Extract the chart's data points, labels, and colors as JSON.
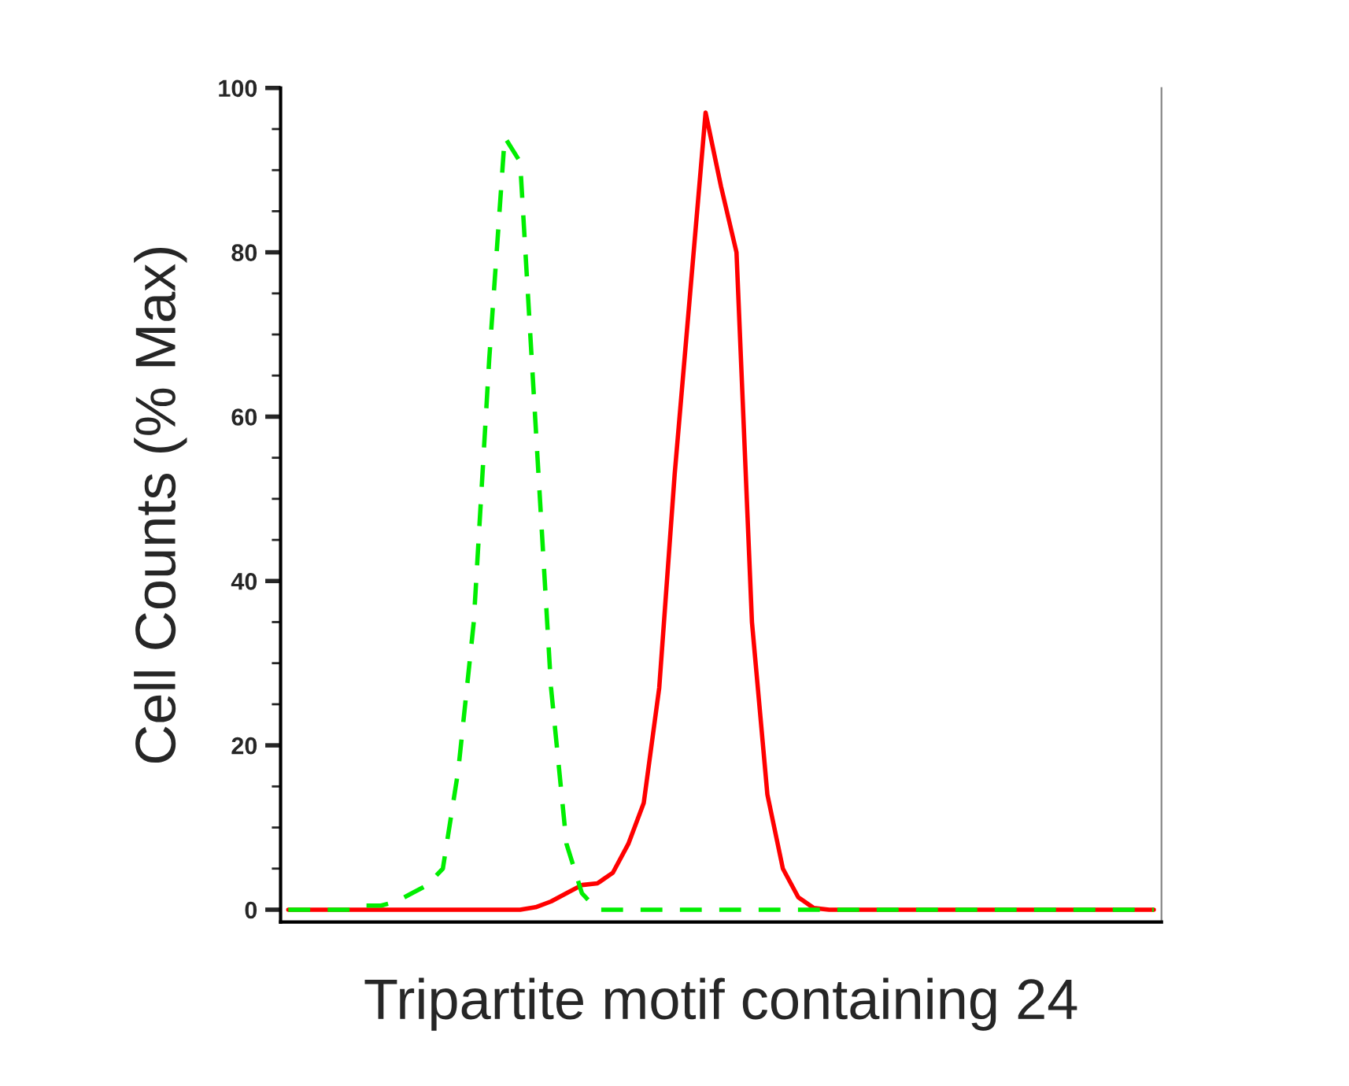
{
  "chart_data": {
    "type": "line",
    "xlabel": "Tripartite motif containing 24",
    "ylabel": "Cell Counts (% Max)",
    "categories": [
      null,
      null,
      null,
      null,
      null,
      null,
      null,
      null,
      null,
      null,
      null,
      null,
      null,
      null,
      null,
      null,
      null,
      null,
      null,
      null,
      null,
      null,
      null,
      null,
      null,
      null,
      null,
      null,
      null,
      null,
      null,
      null,
      null,
      null,
      null,
      null,
      null,
      null,
      null,
      null,
      null,
      null,
      null,
      null,
      null,
      null,
      null,
      null,
      null,
      null,
      null,
      null,
      null,
      null,
      null,
      null,
      null
    ],
    "series": [
      {
        "color": "#00ee00",
        "line_style": "dashed",
        "values": [
          0,
          0,
          0,
          0,
          0,
          0.5,
          0.5,
          1,
          2,
          3,
          5,
          17,
          35,
          67,
          94,
          91,
          59,
          27,
          8,
          2,
          0,
          0,
          0,
          0,
          0,
          0,
          0,
          0,
          0,
          0,
          0,
          0,
          0,
          0,
          0,
          0,
          0,
          0,
          0,
          0,
          0,
          0,
          0,
          0,
          0,
          0,
          0,
          0,
          0,
          0,
          0,
          0,
          0,
          0,
          0,
          0,
          0
        ]
      },
      {
        "color": "#ff0000",
        "line_style": "solid",
        "values": [
          0,
          0,
          0,
          0,
          0,
          0,
          0,
          0,
          0,
          0,
          0,
          0,
          0,
          0,
          0,
          0,
          0.3,
          1,
          2,
          3,
          3.2,
          4.5,
          8,
          13,
          27,
          53,
          75,
          97,
          88,
          80,
          35,
          14,
          5,
          1.5,
          0.2,
          0,
          0,
          0,
          0,
          0,
          0,
          0,
          0,
          0,
          0,
          0,
          0,
          0,
          0,
          0,
          0,
          0,
          0,
          0,
          0,
          0,
          0
        ]
      }
    ],
    "ylim": [
      -1.5,
      100
    ],
    "yticks": [
      0,
      {
        "value": 5,
        "label": null
      },
      {
        "value": 10,
        "label": null
      },
      {
        "value": 15,
        "label": null
      },
      20,
      {
        "value": 25,
        "label": null
      },
      {
        "value": 30,
        "label": null
      },
      {
        "value": 35,
        "label": null
      },
      40,
      {
        "value": 45,
        "label": null
      },
      {
        "value": 50,
        "label": null
      },
      {
        "value": 55,
        "label": null
      },
      60,
      {
        "value": 65,
        "label": null
      },
      {
        "value": 70,
        "label": null
      },
      {
        "value": 75,
        "label": null
      },
      80,
      {
        "value": 85,
        "label": null
      },
      {
        "value": 90,
        "label": null
      },
      {
        "value": 95,
        "label": null
      },
      100
    ],
    "grid": false,
    "legend": false,
    "marker": "none"
  }
}
